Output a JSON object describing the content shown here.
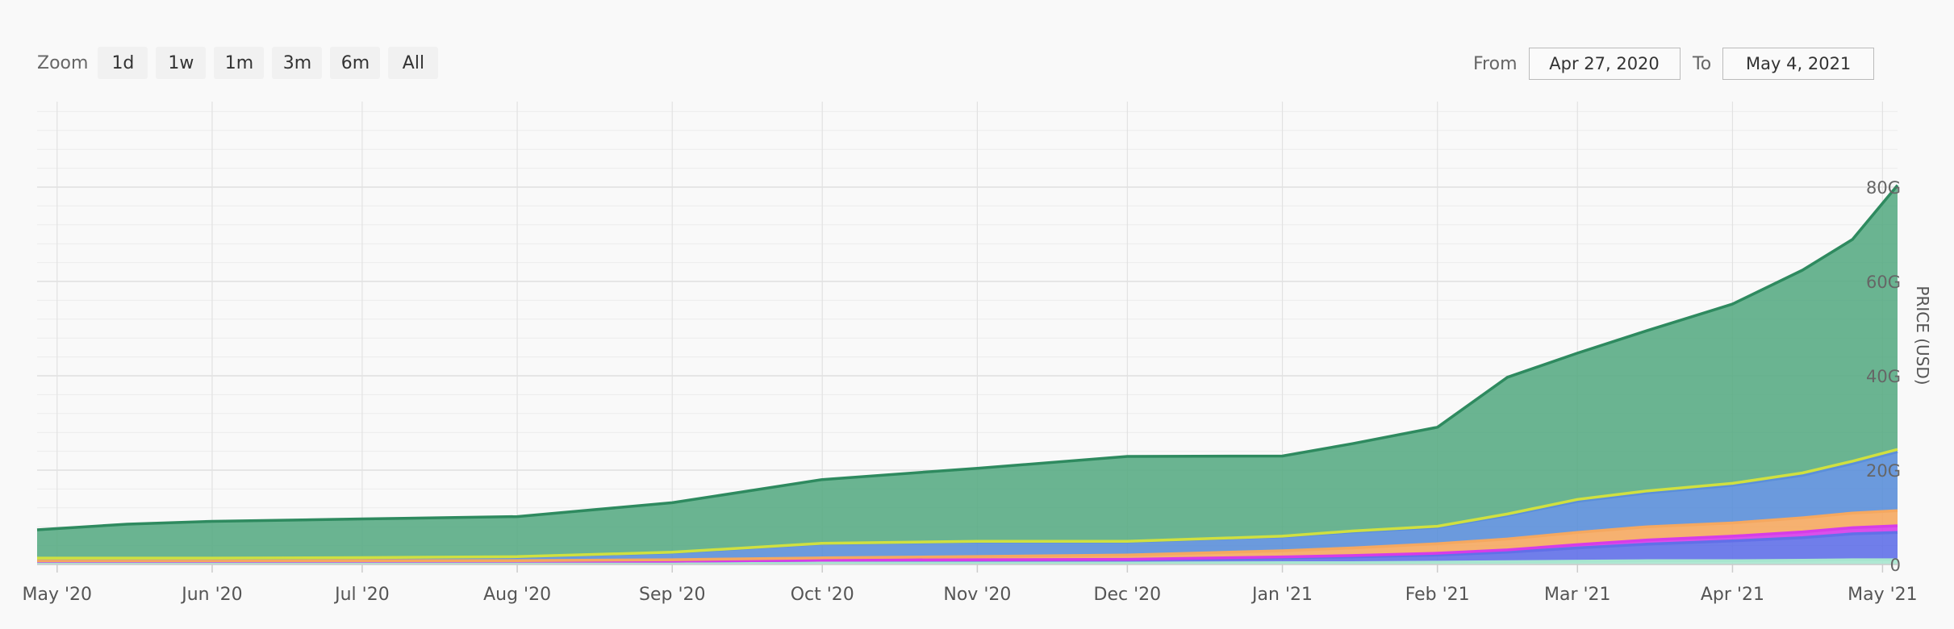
{
  "zoom": {
    "label": "Zoom",
    "buttons": [
      "1d",
      "1w",
      "1m",
      "3m",
      "6m",
      "All"
    ]
  },
  "range": {
    "from_label": "From",
    "from_value": "Apr 27, 2020",
    "to_label": "To",
    "to_value": "May 4, 2021"
  },
  "chart_data": {
    "type": "area",
    "stacked": true,
    "ylabel": "PRICE (USD)",
    "ylim": [
      0,
      80
    ],
    "y_unit": "G",
    "y_ticks": [
      "0",
      "20G",
      "40G",
      "60G",
      "80G"
    ],
    "y_tick_values": [
      0,
      20,
      40,
      60,
      80
    ],
    "x_tick_labels": [
      "May '20",
      "Jun '20",
      "Jul '20",
      "Aug '20",
      "Sep '20",
      "Oct '20",
      "Nov '20",
      "Dec '20",
      "Jan '21",
      "Feb '21",
      "Mar '21",
      "Apr '21",
      "May '21"
    ],
    "x_tick_dates": [
      "2020-05-01",
      "2020-06-01",
      "2020-07-01",
      "2020-08-01",
      "2020-09-01",
      "2020-10-01",
      "2020-11-01",
      "2020-12-01",
      "2021-01-01",
      "2021-02-01",
      "2021-03-01",
      "2021-04-01",
      "2021-05-01"
    ],
    "x_range": [
      "2020-04-27",
      "2021-05-04"
    ],
    "x": [
      "2020-04-27",
      "2020-05-15",
      "2020-06-01",
      "2020-07-01",
      "2020-08-01",
      "2020-09-01",
      "2020-10-01",
      "2020-11-01",
      "2020-12-01",
      "2021-01-01",
      "2021-01-15",
      "2021-02-01",
      "2021-02-15",
      "2021-03-01",
      "2021-03-15",
      "2021-04-01",
      "2021-04-15",
      "2021-04-25",
      "2021-05-04"
    ],
    "grid": true,
    "series": [
      {
        "color": "#a8e6cf",
        "values": [
          0.2,
          0.2,
          0.2,
          0.2,
          0.2,
          0.2,
          0.3,
          0.3,
          0.3,
          0.4,
          0.4,
          0.5,
          0.6,
          0.7,
          0.8,
          0.8,
          0.9,
          1.0,
          1.0
        ]
      },
      {
        "color": "#6170e8",
        "values": [
          0.5,
          0.5,
          0.5,
          0.5,
          0.5,
          0.5,
          0.6,
          0.6,
          0.7,
          1.0,
          1.2,
          1.5,
          2.0,
          2.8,
          3.5,
          4.2,
          4.8,
          5.5,
          5.8
        ]
      },
      {
        "color": "#d63ce8",
        "values": [
          0.0,
          0.0,
          0.0,
          0.0,
          0.0,
          0.0,
          0.0,
          0.1,
          0.1,
          0.2,
          0.3,
          0.4,
          0.5,
          0.7,
          0.9,
          1.0,
          1.2,
          1.3,
          1.4
        ]
      },
      {
        "color": "#f5a860",
        "values": [
          0.1,
          0.1,
          0.1,
          0.1,
          0.1,
          0.3,
          0.5,
          0.7,
          0.9,
          1.3,
          1.6,
          2.0,
          2.3,
          2.6,
          2.8,
          2.8,
          3.0,
          3.1,
          3.2
        ]
      },
      {
        "color": "#5b8fd9",
        "values": [
          0.5,
          0.5,
          0.5,
          0.6,
          0.8,
          1.5,
          3.0,
          3.1,
          2.8,
          3.0,
          3.4,
          3.5,
          5.0,
          6.6,
          7.2,
          8.0,
          9.0,
          10.5,
          12.5
        ]
      },
      {
        "color": "#d7e84a",
        "values": [
          0.05,
          0.05,
          0.05,
          0.05,
          0.05,
          0.1,
          0.1,
          0.1,
          0.1,
          0.1,
          0.2,
          0.2,
          0.3,
          0.4,
          0.4,
          0.4,
          0.5,
          0.5,
          0.5
        ]
      },
      {
        "color": "#5aac85",
        "values": [
          6.0,
          7.2,
          7.8,
          8.2,
          8.5,
          10.5,
          13.5,
          15.5,
          18.0,
          17.0,
          18.5,
          21.0,
          29.0,
          31.0,
          34.0,
          38.0,
          43.0,
          47.0,
          56.0
        ]
      }
    ]
  }
}
